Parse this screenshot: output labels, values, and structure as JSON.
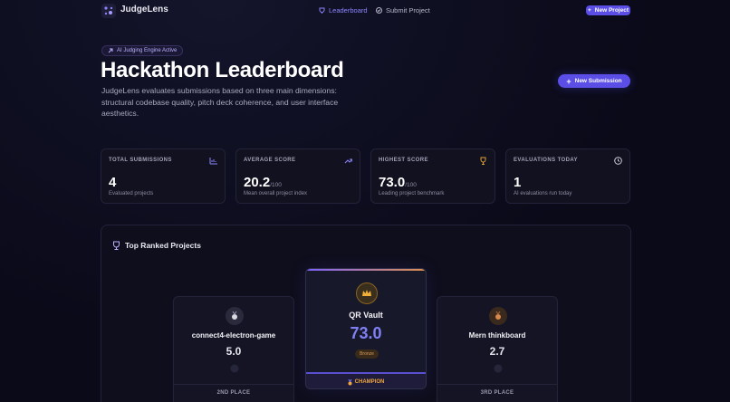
{
  "nav": {
    "brand": "JudgeLens",
    "links": [
      "Leaderboard",
      "Submit Project"
    ],
    "button": "New Project"
  },
  "hero": {
    "badge": "AI Judging Engine Active",
    "title": "Hackathon Leaderboard",
    "description": "JudgeLens evaluates submissions based on three main dimensions: structural codebase quality, pitch deck coherence, and user interface aesthetics.",
    "button": "New Submission"
  },
  "stats": [
    {
      "label": "TOTAL SUBMISSIONS",
      "value": "4",
      "note": "Evaluated projects"
    },
    {
      "label": "AVERAGE SCORE",
      "value": "20.2",
      "suffix": "/100",
      "note": "Mean overall project index"
    },
    {
      "label": "HIGHEST SCORE",
      "value": "73.0",
      "suffix": "/100",
      "note": "Leading project benchmark"
    },
    {
      "label": "EVALUATIONS TODAY",
      "value": "1",
      "note": "AI evaluations run today"
    }
  ],
  "leaderboard": {
    "title": "Top Ranked Projects",
    "podium": [
      {
        "name": "connect4-electron-game",
        "score": "5.0",
        "place": "2ND PLACE"
      },
      {
        "name": "QR Vault",
        "score": "73.0",
        "tier": "Bronze",
        "place": "CHAMPION"
      },
      {
        "name": "Mern thinkboard",
        "score": "2.7",
        "place": "3RD PLACE"
      }
    ]
  }
}
